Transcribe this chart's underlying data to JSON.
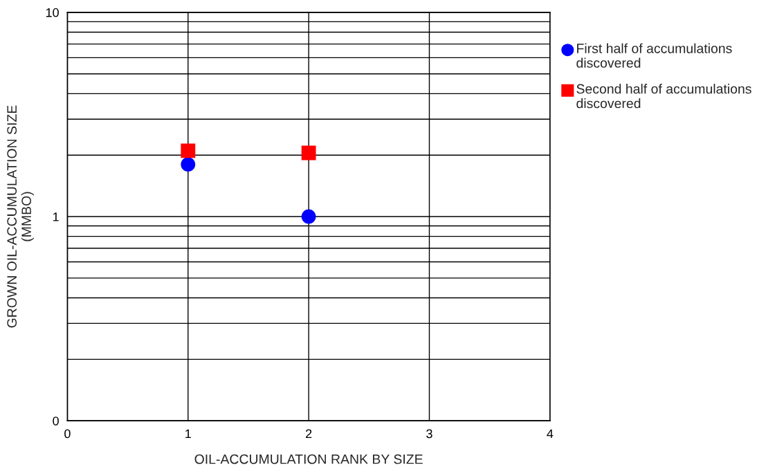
{
  "chart_data": {
    "type": "scatter",
    "xlabel": "OIL-ACCUMULATION RANK BY SIZE",
    "ylabel": "GROWN OIL-ACCUMULATION SIZE\n(MMBO)",
    "log": "y",
    "xlim": [
      0,
      4
    ],
    "xticks": [
      0,
      1,
      2,
      3,
      4
    ],
    "ylim": [
      0.1,
      10
    ],
    "yticks": [
      {
        "value": 0.1,
        "label": "0"
      },
      {
        "value": 0.2,
        "label": null
      },
      {
        "value": 0.3,
        "label": null
      },
      {
        "value": 0.4,
        "label": null
      },
      {
        "value": 0.5,
        "label": null
      },
      {
        "value": 0.6,
        "label": null
      },
      {
        "value": 0.7,
        "label": null
      },
      {
        "value": 0.8,
        "label": null
      },
      {
        "value": 0.9,
        "label": null
      },
      1,
      {
        "value": 2,
        "label": null
      },
      {
        "value": 3,
        "label": null
      },
      {
        "value": 4,
        "label": null
      },
      {
        "value": 5,
        "label": null
      },
      {
        "value": 6,
        "label": null
      },
      {
        "value": 7,
        "label": null
      },
      {
        "value": 8,
        "label": null
      },
      {
        "value": 9,
        "label": null
      },
      10
    ],
    "grid": true,
    "legend": "top right",
    "x": [
      1,
      2
    ],
    "series": [
      {
        "name": "First half of accumulations discovered",
        "color": "#0000ff",
        "marker": "circle",
        "values": [
          1.8,
          1.0
        ]
      },
      {
        "name": "Second half of accumulations discovered",
        "color": "#ff0000",
        "marker": "square",
        "values": [
          2.1,
          2.05
        ]
      }
    ]
  }
}
